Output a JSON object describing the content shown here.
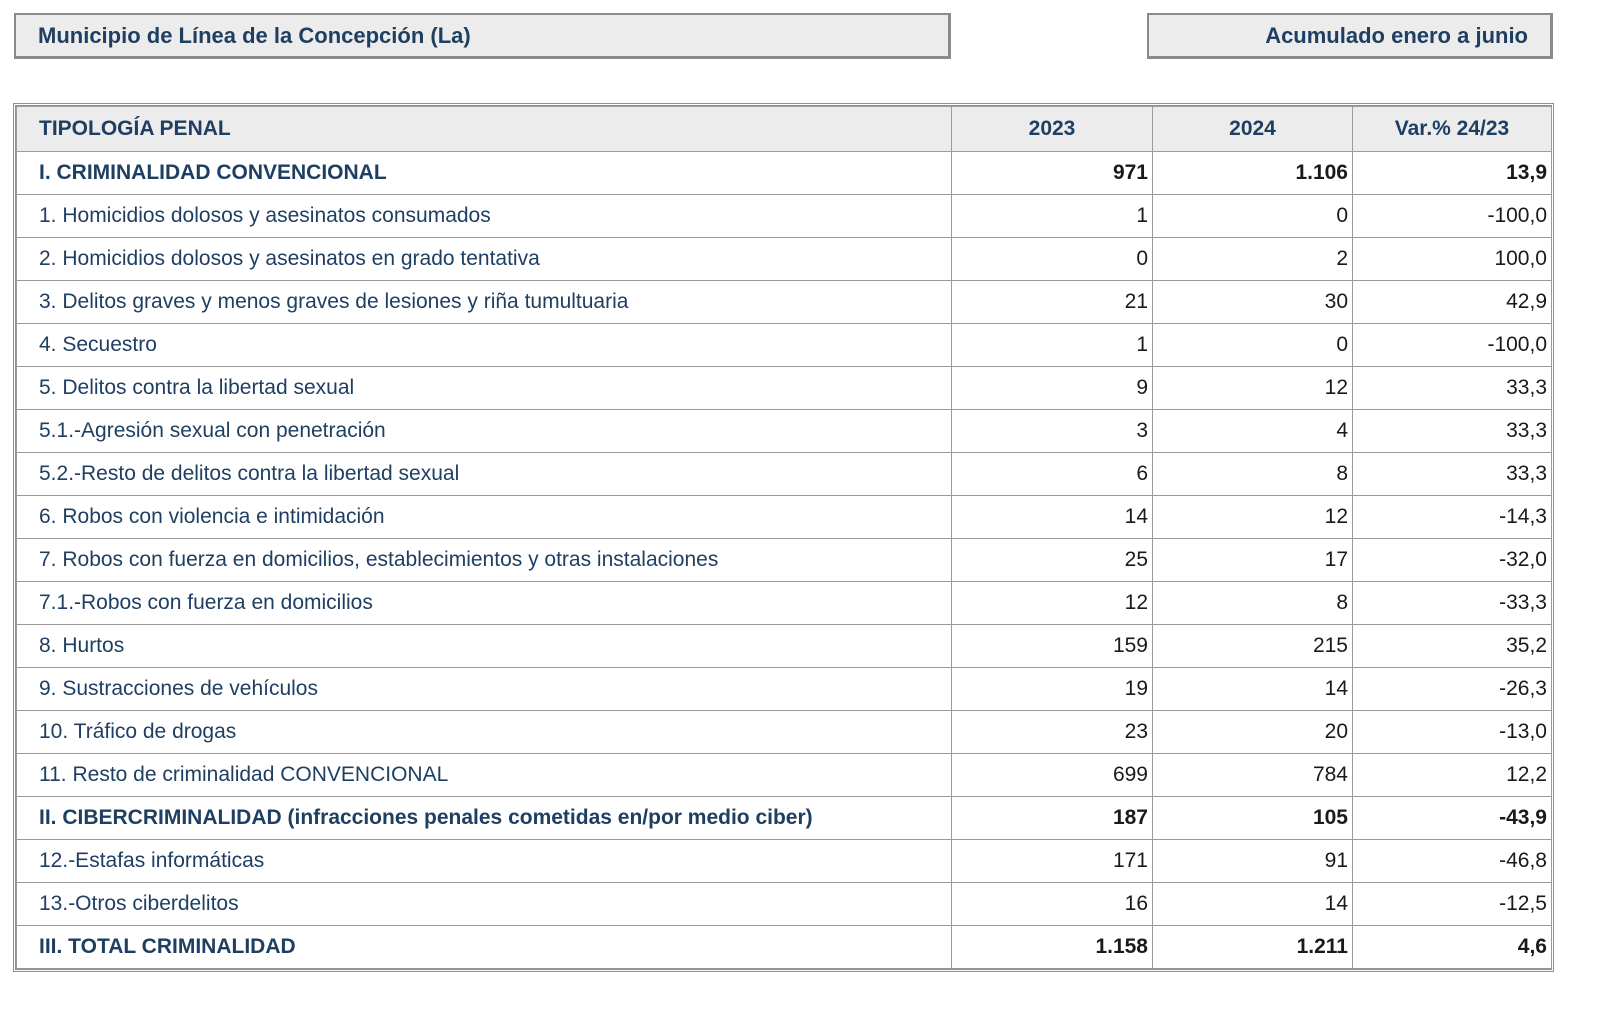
{
  "header": {
    "municipality": "Municipio de Línea de la Concepción (La)",
    "period": "Acumulado enero a junio"
  },
  "table": {
    "columns": [
      "TIPOLOGÍA PENAL",
      "2023",
      "2024",
      "Var.% 24/23"
    ],
    "rows": [
      {
        "label": "I. CRIMINALIDAD CONVENCIONAL",
        "y2023": "971",
        "y2024": "1.106",
        "var": "13,9",
        "bold": true
      },
      {
        "label": "1. Homicidios dolosos y asesinatos consumados",
        "y2023": "1",
        "y2024": "0",
        "var": "-100,0"
      },
      {
        "label": "2. Homicidios dolosos y asesinatos en grado tentativa",
        "y2023": "0",
        "y2024": "2",
        "var": "100,0"
      },
      {
        "label": "3. Delitos graves y menos graves de lesiones y riña tumultuaria",
        "y2023": "21",
        "y2024": "30",
        "var": "42,9"
      },
      {
        "label": "4. Secuestro",
        "y2023": "1",
        "y2024": "0",
        "var": "-100,0"
      },
      {
        "label": "5. Delitos contra la libertad sexual",
        "y2023": "9",
        "y2024": "12",
        "var": "33,3"
      },
      {
        "label": "5.1.-Agresión sexual con penetración",
        "y2023": "3",
        "y2024": "4",
        "var": "33,3"
      },
      {
        "label": "5.2.-Resto de delitos contra la libertad sexual",
        "y2023": "6",
        "y2024": "8",
        "var": "33,3"
      },
      {
        "label": "6. Robos con violencia e intimidación",
        "y2023": "14",
        "y2024": "12",
        "var": "-14,3"
      },
      {
        "label": "7. Robos con fuerza en domicilios, establecimientos y otras instalaciones",
        "y2023": "25",
        "y2024": "17",
        "var": "-32,0"
      },
      {
        "label": "7.1.-Robos con fuerza en domicilios",
        "y2023": "12",
        "y2024": "8",
        "var": "-33,3"
      },
      {
        "label": "8. Hurtos",
        "y2023": "159",
        "y2024": "215",
        "var": "35,2"
      },
      {
        "label": "9. Sustracciones de vehículos",
        "y2023": "19",
        "y2024": "14",
        "var": "-26,3"
      },
      {
        "label": "10. Tráfico de drogas",
        "y2023": "23",
        "y2024": "20",
        "var": "-13,0"
      },
      {
        "label": "11. Resto de criminalidad CONVENCIONAL",
        "y2023": "699",
        "y2024": "784",
        "var": "12,2"
      },
      {
        "label": "II. CIBERCRIMINALIDAD (infracciones penales cometidas en/por medio ciber)",
        "y2023": "187",
        "y2024": "105",
        "var": "-43,9",
        "bold": true
      },
      {
        "label": "12.-Estafas informáticas",
        "y2023": "171",
        "y2024": "91",
        "var": "-46,8"
      },
      {
        "label": "13.-Otros ciberdelitos",
        "y2023": "16",
        "y2024": "14",
        "var": "-12,5"
      },
      {
        "label": "III. TOTAL CRIMINALIDAD",
        "y2023": "1.158",
        "y2024": "1.211",
        "var": "4,6",
        "bold": true
      }
    ]
  },
  "colors": {
    "header_text": "#1f3f62",
    "header_bg": "#ececec",
    "border": "#9a9a9a"
  }
}
